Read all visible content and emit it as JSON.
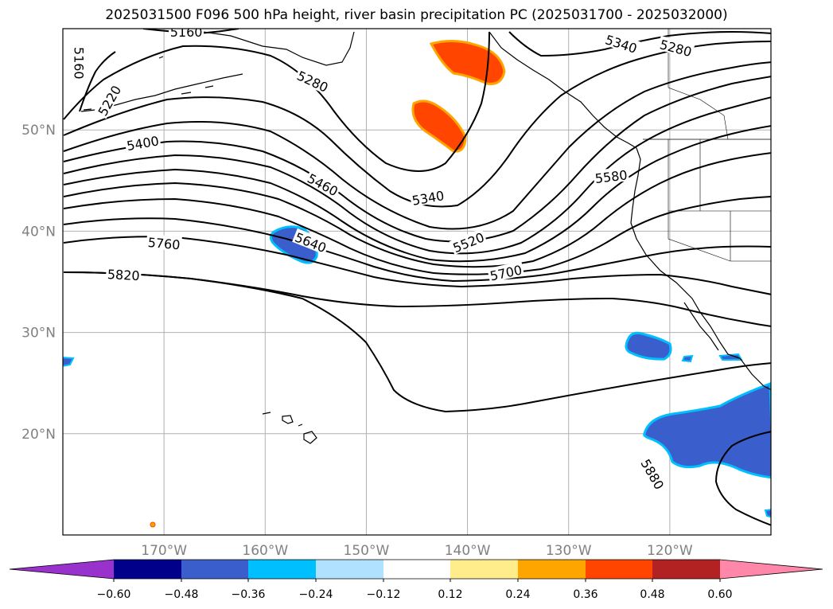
{
  "title": "2025031500 F096 500 hPa height, river basin precipitation PC (2025031700 - 2025032000)",
  "map": {
    "projection": "plate-carree",
    "lon_range": [
      -180,
      -110
    ],
    "lat_range": [
      10,
      60
    ],
    "gridlines": true,
    "lat_ticks": [
      {
        "value": 20,
        "label": "20°N"
      },
      {
        "value": 30,
        "label": "30°N"
      },
      {
        "value": 40,
        "label": "40°N"
      },
      {
        "value": 50,
        "label": "50°N"
      }
    ],
    "lon_ticks": [
      {
        "value": -170,
        "label": "170°W"
      },
      {
        "value": -160,
        "label": "160°W"
      },
      {
        "value": -150,
        "label": "150°W"
      },
      {
        "value": -140,
        "label": "140°W"
      },
      {
        "value": -130,
        "label": "130°W"
      },
      {
        "value": -120,
        "label": "120°W"
      }
    ]
  },
  "contours": {
    "variable": "500 hPa height",
    "labels": [
      {
        "text": "5160",
        "lon": -167.8,
        "lat": 59.7,
        "angle": 0
      },
      {
        "text": "5160",
        "lon": -178.4,
        "lat": 56.6,
        "angle": 90
      },
      {
        "text": "5220",
        "lon": -175.4,
        "lat": 52.9,
        "angle": -60
      },
      {
        "text": "5280",
        "lon": -155.3,
        "lat": 54.8,
        "angle": 25
      },
      {
        "text": "5340",
        "lon": -124.8,
        "lat": 58.5,
        "angle": 18
      },
      {
        "text": "5280",
        "lon": -119.4,
        "lat": 58.1,
        "angle": 15
      },
      {
        "text": "5400",
        "lon": -172.1,
        "lat": 48.7,
        "angle": -10
      },
      {
        "text": "5460",
        "lon": -154.3,
        "lat": 44.6,
        "angle": 28
      },
      {
        "text": "5340",
        "lon": -143.9,
        "lat": 43.3,
        "angle": -10
      },
      {
        "text": "5580",
        "lon": -125.8,
        "lat": 45.4,
        "angle": -7
      },
      {
        "text": "5640",
        "lon": -155.5,
        "lat": 38.9,
        "angle": 22
      },
      {
        "text": "5760",
        "lon": -170.0,
        "lat": 38.8,
        "angle": 5
      },
      {
        "text": "5520",
        "lon": -139.9,
        "lat": 38.9,
        "angle": -22
      },
      {
        "text": "5700",
        "lon": -136.2,
        "lat": 35.9,
        "angle": -12
      },
      {
        "text": "5820",
        "lon": -174.0,
        "lat": 35.7,
        "angle": 3
      },
      {
        "text": "5880",
        "lon": -121.7,
        "lat": 16.0,
        "angle": 60
      }
    ]
  },
  "precip_anomaly_regions": [
    {
      "sign": "positive",
      "level": 0.42,
      "lon": -141.8,
      "lat": 56.7
    },
    {
      "sign": "positive",
      "level": 0.42,
      "lon": -144.5,
      "lat": 50.7
    },
    {
      "sign": "negative",
      "level": -0.42,
      "lon": -157.5,
      "lat": 39.1
    },
    {
      "sign": "negative",
      "level": -0.42,
      "lon": -124.5,
      "lat": 29.0
    },
    {
      "sign": "negative",
      "level": -0.42,
      "lon": -115.0,
      "lat": 20.0
    },
    {
      "sign": "negative",
      "level": -0.3,
      "lon": -179.6,
      "lat": 27.3
    }
  ],
  "colorbar": {
    "colors": [
      "#9932cc",
      "#00008b",
      "#3a5fcd",
      "#00bfff",
      "#b0e2ff",
      "#ffffff",
      "#ffec8b",
      "#ffa500",
      "#ff4500",
      "#b22222",
      "#ff88aa"
    ],
    "ticks": [
      "−0.60",
      "−0.48",
      "−0.36",
      "−0.24",
      "−0.12",
      "0.12",
      "0.24",
      "0.36",
      "0.48",
      "0.60"
    ]
  }
}
